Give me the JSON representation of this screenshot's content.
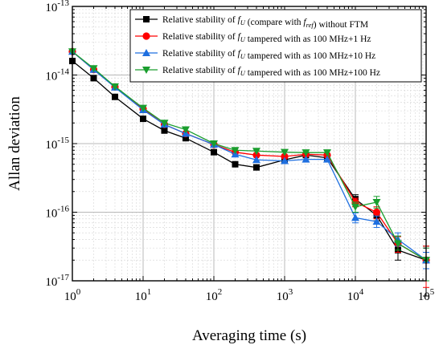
{
  "chart_data": {
    "type": "line",
    "xlabel": "Averaging time (s)",
    "ylabel": "Allan deviation",
    "xscale": "log",
    "yscale": "log",
    "xlim": [
      1,
      100000
    ],
    "ylim": [
      1e-17,
      1e-13
    ],
    "x_tick_labels": [
      {
        "base": "10",
        "exp": "0"
      },
      {
        "base": "10",
        "exp": "1"
      },
      {
        "base": "10",
        "exp": "2"
      },
      {
        "base": "10",
        "exp": "3"
      },
      {
        "base": "10",
        "exp": "4"
      },
      {
        "base": "10",
        "exp": "5"
      }
    ],
    "y_tick_labels": [
      {
        "base": "10",
        "exp": "-17"
      },
      {
        "base": "10",
        "exp": "-16"
      },
      {
        "base": "10",
        "exp": "-15"
      },
      {
        "base": "10",
        "exp": "-14"
      },
      {
        "base": "10",
        "exp": "-13"
      }
    ],
    "grid": true,
    "legend_position": "top-right",
    "series": [
      {
        "legend": [
          {
            "t": "Relative stability of "
          },
          {
            "t": "f",
            "i": true
          },
          {
            "t": "U",
            "sub": true,
            "i": true
          },
          {
            "t": " (compare with "
          },
          {
            "t": "f",
            "i": true
          },
          {
            "t": "ref",
            "sub": true,
            "i": true
          },
          {
            "t": ") without FTM"
          }
        ],
        "color": "#000000",
        "marker": "square",
        "x": [
          1,
          2,
          4,
          10,
          20,
          40,
          100,
          200,
          400,
          1000,
          2000,
          4000,
          10000,
          20000,
          40000,
          100000
        ],
        "y": [
          1.6e-14,
          9e-15,
          4.8e-15,
          2.3e-15,
          1.55e-15,
          1.2e-15,
          7.5e-16,
          5e-16,
          4.5e-16,
          5.8e-16,
          6.8e-16,
          6.2e-16,
          1.55e-16,
          9e-17,
          2.8e-17,
          2e-17
        ],
        "err_low": [
          null,
          null,
          null,
          null,
          null,
          null,
          null,
          null,
          null,
          null,
          null,
          null,
          1.3e-16,
          7.5e-17,
          2e-17,
          6e-18
        ],
        "err_high": [
          null,
          null,
          null,
          null,
          null,
          null,
          null,
          null,
          null,
          null,
          null,
          null,
          1.8e-16,
          1.05e-16,
          3.6e-17,
          3.2e-17
        ]
      },
      {
        "legend": [
          {
            "t": "Relative stability of "
          },
          {
            "t": "f",
            "i": true
          },
          {
            "t": "U",
            "sub": true,
            "i": true
          },
          {
            "t": " tampered with as 100 MHz+1 Hz"
          }
        ],
        "color": "#ff0000",
        "marker": "circle",
        "x": [
          1,
          2,
          4,
          10,
          20,
          40,
          100,
          200,
          400,
          1000,
          2000,
          4000,
          10000,
          20000,
          40000,
          100000
        ],
        "y": [
          2.2e-14,
          1.2e-14,
          6.7e-15,
          3.2e-15,
          1.9e-15,
          1.4e-15,
          9.7e-16,
          7.5e-16,
          6.8e-16,
          6.5e-16,
          7e-16,
          6.8e-16,
          1.4e-16,
          1e-16,
          3.5e-17,
          2e-17
        ],
        "err_low": [
          null,
          null,
          null,
          null,
          null,
          null,
          null,
          null,
          null,
          null,
          null,
          null,
          1.2e-16,
          8e-17,
          2.6e-17,
          8e-18
        ],
        "err_high": [
          null,
          null,
          null,
          null,
          null,
          null,
          null,
          null,
          null,
          null,
          null,
          null,
          1.6e-16,
          1.2e-16,
          4.4e-17,
          3.2e-17
        ]
      },
      {
        "legend": [
          {
            "t": "Relative stability of "
          },
          {
            "t": "f",
            "i": true
          },
          {
            "t": "U",
            "sub": true,
            "i": true
          },
          {
            "t": " tampered with as 100 MHz+10 Hz"
          }
        ],
        "color": "#1e6fe0",
        "marker": "triangle-up",
        "x": [
          1,
          2,
          4,
          10,
          20,
          40,
          100,
          200,
          400,
          1000,
          2000,
          4000,
          10000,
          20000,
          40000,
          100000
        ],
        "y": [
          2.2e-14,
          1.2e-14,
          6.6e-15,
          3.1e-15,
          1.9e-15,
          1.4e-15,
          9.7e-16,
          7e-16,
          5.8e-16,
          5.6e-16,
          5.9e-16,
          5.9e-16,
          8.3e-17,
          7.3e-17,
          4e-17,
          2e-17
        ],
        "err_low": [
          null,
          null,
          null,
          null,
          null,
          null,
          null,
          null,
          null,
          null,
          null,
          null,
          7e-17,
          6e-17,
          3.2e-17,
          1.5e-17
        ],
        "err_high": [
          null,
          null,
          null,
          null,
          null,
          null,
          null,
          null,
          null,
          null,
          null,
          null,
          9.8e-17,
          8.8e-17,
          5e-17,
          2.6e-17
        ]
      },
      {
        "legend": [
          {
            "t": "Relative stability of "
          },
          {
            "t": "f",
            "i": true
          },
          {
            "t": "U",
            "sub": true,
            "i": true
          },
          {
            "t": " tampered with as 100 MHz+100 Hz"
          }
        ],
        "color": "#1a9e2e",
        "marker": "triangle-down",
        "x": [
          1,
          2,
          4,
          10,
          20,
          40,
          100,
          200,
          400,
          1000,
          2000,
          4000,
          10000,
          20000,
          40000,
          100000
        ],
        "y": [
          2.2e-14,
          1.25e-14,
          6.8e-15,
          3.3e-15,
          2e-15,
          1.6e-15,
          1e-15,
          8e-16,
          7.8e-16,
          7.5e-16,
          7.4e-16,
          7.4e-16,
          1.2e-16,
          1.4e-16,
          3.5e-17,
          2e-17
        ],
        "err_low": [
          null,
          null,
          null,
          null,
          null,
          null,
          null,
          null,
          null,
          null,
          null,
          null,
          1e-16,
          1.15e-16,
          2.8e-17,
          1e-17
        ],
        "err_high": [
          null,
          null,
          null,
          null,
          null,
          null,
          null,
          null,
          null,
          null,
          null,
          null,
          1.4e-16,
          1.7e-16,
          4.5e-17,
          3e-17
        ]
      }
    ]
  }
}
